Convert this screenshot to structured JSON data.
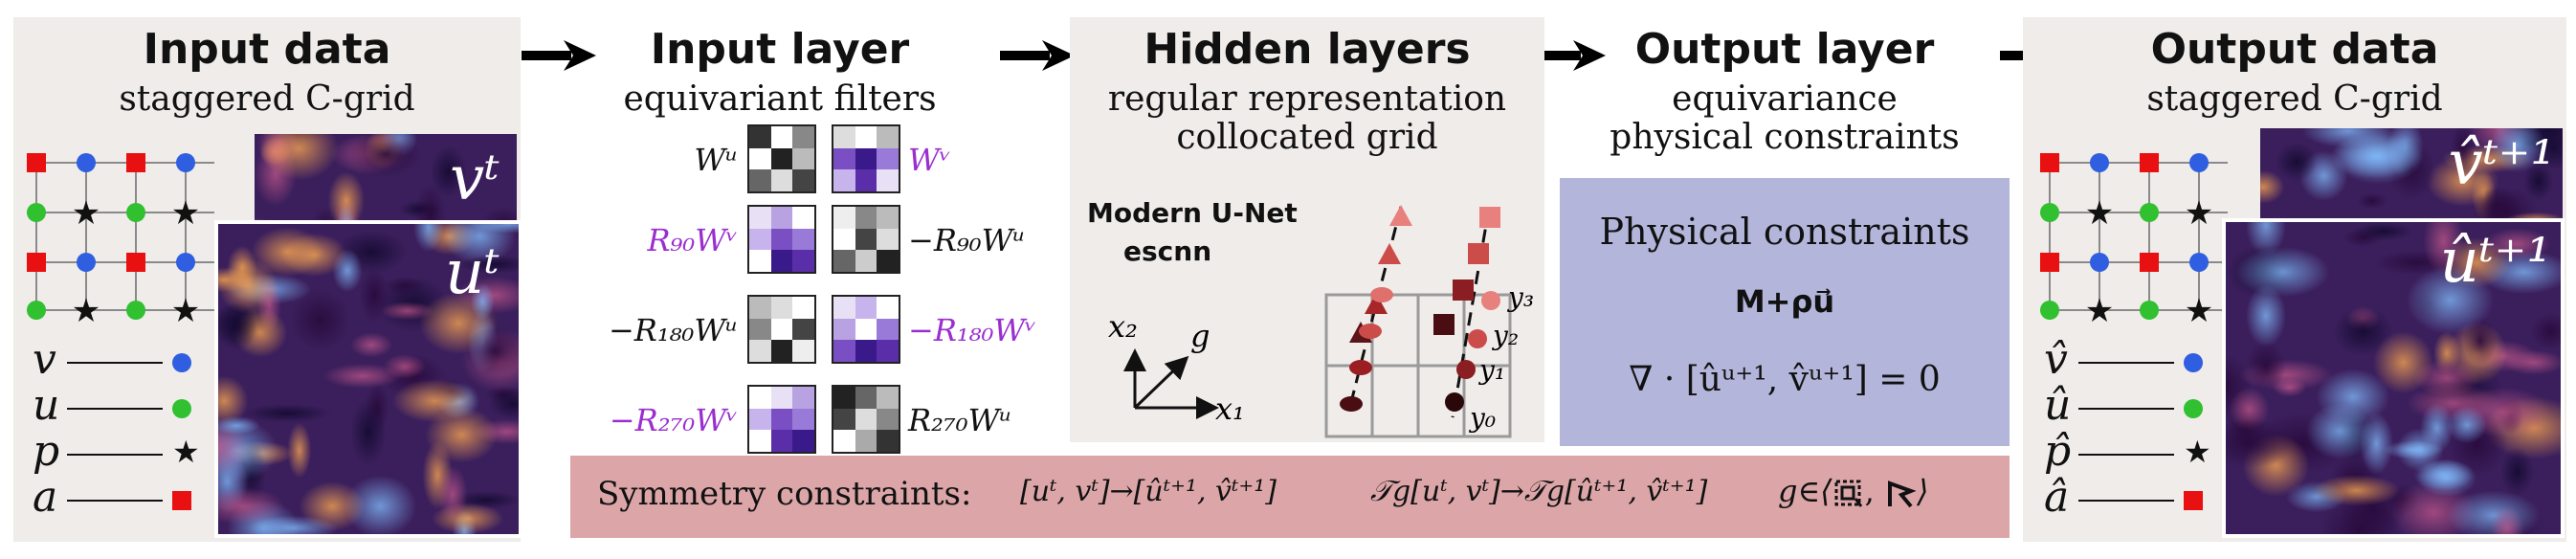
{
  "sections": {
    "input_data": {
      "title": "Input data",
      "subtitle": "staggered  C-grid"
    },
    "input_layer": {
      "title": "Input layer",
      "subtitle": "equivariant  filters"
    },
    "hidden_layers": {
      "title": "Hidden layers",
      "subtitle1": "regular  representation",
      "subtitle2": "collocated  grid"
    },
    "output_layer": {
      "title": "Output layer",
      "subtitle1": "equivariance",
      "subtitle2": "physical  constraints"
    },
    "output_data": {
      "title": "Output data",
      "subtitle": "staggered  C-grid"
    }
  },
  "input_fields": {
    "back_label": "vᵗ",
    "front_label": "uᵗ"
  },
  "output_fields": {
    "back_label": "v̂ᵗ⁺¹",
    "front_label": "ûᵗ⁺¹"
  },
  "input_legend": [
    {
      "symbol": "v",
      "marker": "dot",
      "color": "#2f5fe0"
    },
    {
      "symbol": "u",
      "marker": "dot",
      "color": "#30c030"
    },
    {
      "symbol": "p",
      "marker": "star",
      "color": "#111111"
    },
    {
      "symbol": "a",
      "marker": "square",
      "color": "#e81010"
    }
  ],
  "output_legend": [
    {
      "symbol": "v̂",
      "marker": "dot",
      "color": "#2f5fe0"
    },
    {
      "symbol": "û",
      "marker": "dot",
      "color": "#30c030"
    },
    {
      "symbol": "p̂",
      "marker": "star",
      "color": "#111111"
    },
    {
      "symbol": "â",
      "marker": "square",
      "color": "#e81010"
    }
  ],
  "filters": {
    "left": [
      {
        "label": "Wᵘ",
        "purple": false
      },
      {
        "label": "R₉₀Wᵛ",
        "purple": true
      },
      {
        "label": "−R₁₈₀Wᵘ",
        "purple": false
      },
      {
        "label": "−R₂₇₀Wᵛ",
        "purple": true
      }
    ],
    "right": [
      {
        "label": "Wᵛ",
        "purple": true
      },
      {
        "label": "−R₉₀Wᵘ",
        "purple": false
      },
      {
        "label": "−R₁₈₀Wᵛ",
        "purple": true
      },
      {
        "label": "R₂₇₀Wᵘ",
        "purple": false
      }
    ]
  },
  "hidden": {
    "model_line1": "Modern U-Net",
    "model_line2": "escnn",
    "axis_x2": "x₂",
    "axis_x1": "x₁",
    "axis_g": "g",
    "y_labels": [
      "y₃",
      "y₂",
      "y₁",
      "y₀"
    ]
  },
  "constraints": {
    "title": "Physical constraints",
    "formula": "M+ρu⃗",
    "equation": "∇ · [ûᵘ⁺¹, v̂ᵘ⁺¹] = 0"
  },
  "symmetry": {
    "label": "Symmetry  constraints:",
    "expr1": "[uᵗ, vᵗ]→[ûᵗ⁺¹, v̂ᵗ⁺¹]",
    "expr2": "𝒯g[uᵗ, vᵗ]→𝒯g[ûᵗ⁺¹, v̂ᵗ⁺¹]",
    "expr3": "g∈⟨",
    "expr3_end": "⟩"
  },
  "colors": {
    "panel_gray": "#efecea",
    "constraints_box": "#b3b5db",
    "symmetry_box": "#dca6a9",
    "purple": "#9a2ecf"
  }
}
